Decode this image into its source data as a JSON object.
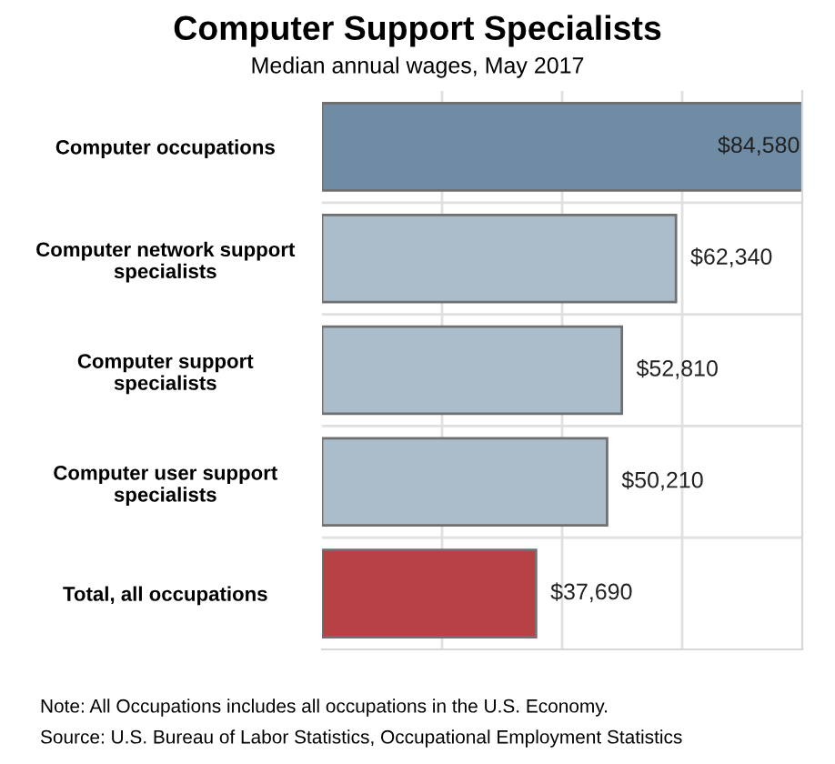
{
  "chart_data": {
    "type": "bar",
    "orientation": "horizontal",
    "title": "Computer Support Specialists",
    "subtitle": "Median annual wages, May 2017",
    "categories": [
      "Computer occupations",
      "Computer network support\nspecialists",
      "Computer support\nspecialists",
      "Computer user support\nspecialists",
      "Total, all occupations"
    ],
    "values": [
      84580,
      62340,
      52810,
      50210,
      37690
    ],
    "colors": [
      "#6f8ca4",
      "#abbdca",
      "#abbdca",
      "#abbdca",
      "#b84145"
    ],
    "value_labels": [
      "$84,580",
      "$62,340",
      "$52,810",
      "$50,210",
      "$37,690"
    ],
    "xlim": [
      0,
      84580
    ],
    "xticks": [
      {
        "value": 21145,
        "label": null
      },
      {
        "value": 42290,
        "label": null
      },
      {
        "value": 63435,
        "label": null
      }
    ],
    "grid": true,
    "annotations": [
      "Note: All Occupations includes all occupations in the U.S. Economy.",
      "Source: U.S. Bureau of Labor Statistics, Occupational Employment Statistics"
    ]
  }
}
